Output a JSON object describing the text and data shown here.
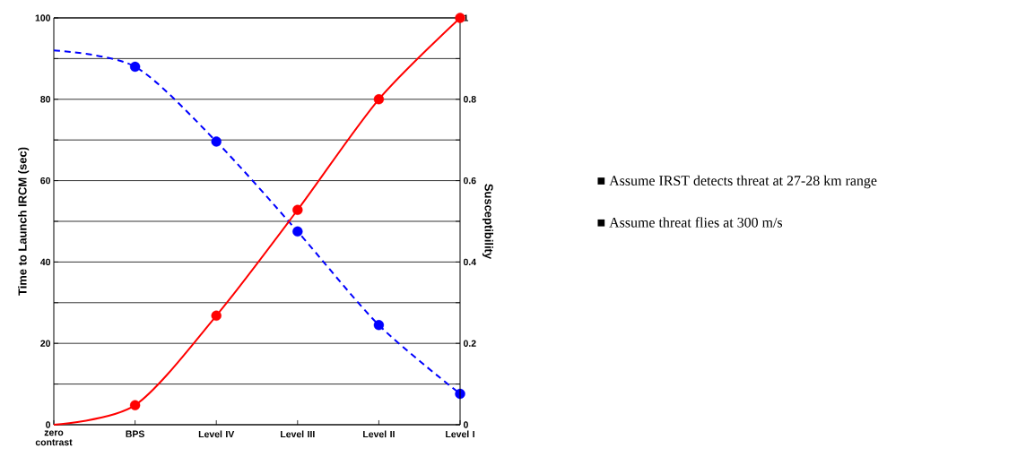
{
  "chart_data": {
    "type": "line",
    "ylabel": "Time to Launch IRCM (sec)",
    "y2label": "Susceptibility",
    "categories": [
      "zero contrast",
      "BPS",
      "Level IV",
      "Level III",
      "Level II",
      "Level I"
    ],
    "ylim": [
      0,
      100
    ],
    "yticks": [
      0,
      {
        "value": 10,
        "label": null
      },
      20,
      {
        "value": 30,
        "label": null
      },
      40,
      {
        "value": 50,
        "label": null
      },
      60,
      {
        "value": 70,
        "label": null
      },
      80,
      {
        "value": 90,
        "label": null
      },
      100
    ],
    "y2lim": [
      0,
      1
    ],
    "y2ticks": [
      0,
      {
        "value": 0.1,
        "label": null
      },
      0.2,
      {
        "value": 0.3,
        "label": null
      },
      0.4,
      {
        "value": 0.5,
        "label": null
      },
      0.6,
      {
        "value": 0.7,
        "label": null
      },
      0.8,
      {
        "value": 0.9,
        "label": null
      },
      1
    ],
    "grid": "y",
    "series": [
      {
        "color": "#0000ff",
        "line_style": "dashed",
        "marker": "none",
        "values": [
          92,
          88,
          69.6,
          47.5,
          24.5,
          7.6
        ]
      },
      {
        "type": "scatter",
        "color": "#0000ff",
        "marker": "circle",
        "values": [
          null,
          88,
          69.6,
          47.5,
          24.5,
          7.6
        ]
      },
      {
        "axis": "y2",
        "color": "#ff0000",
        "line_style": "solid",
        "marker": "none",
        "values": [
          0,
          0.048,
          0.268,
          0.528,
          0.8,
          1
        ]
      },
      {
        "type": "scatter",
        "axis": "y2",
        "color": "#ff0000",
        "marker": "circle",
        "values": [
          null,
          0.048,
          0.268,
          0.528,
          0.8,
          1
        ]
      }
    ],
    "annotations": [
      "■ Assume IRST detects threat at 27-28 km range",
      "■ Assume threat flies at 300 m/s"
    ]
  }
}
